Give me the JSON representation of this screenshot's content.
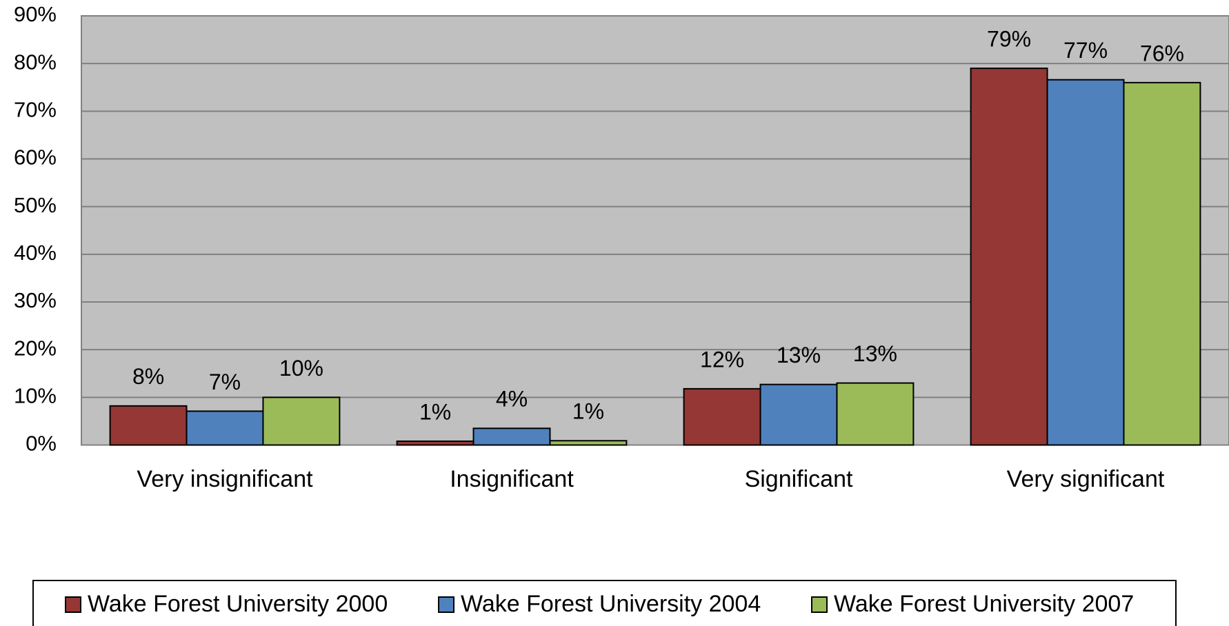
{
  "chart_data": {
    "type": "bar",
    "categories": [
      "Very insignificant",
      "Insignificant",
      "Significant",
      "Very significant"
    ],
    "series": [
      {
        "name": "Wake Forest University 2000",
        "color": "#953735",
        "values": [
          8.2,
          0.8,
          11.8,
          79.0
        ],
        "value_labels": [
          "8%",
          "1%",
          "12%",
          "79%"
        ]
      },
      {
        "name": "Wake Forest University 2004",
        "color": "#4f81bd",
        "values": [
          7.1,
          3.5,
          12.7,
          76.6
        ],
        "value_labels": [
          "7%",
          "4%",
          "13%",
          "77%"
        ]
      },
      {
        "name": "Wake Forest University 2007",
        "color": "#9bbb59",
        "values": [
          10.0,
          0.9,
          13.0,
          76.0
        ],
        "value_labels": [
          "10%",
          "1%",
          "13%",
          "76%"
        ]
      }
    ],
    "ylim": [
      0,
      90
    ],
    "yticks": [
      {
        "value": 0,
        "label": "0%"
      },
      {
        "value": 10,
        "label": "10%"
      },
      {
        "value": 20,
        "label": "20%"
      },
      {
        "value": 30,
        "label": "30%"
      },
      {
        "value": 40,
        "label": "40%"
      },
      {
        "value": 50,
        "label": "50%"
      },
      {
        "value": 60,
        "label": "60%"
      },
      {
        "value": 70,
        "label": "70%"
      },
      {
        "value": 80,
        "label": "80%"
      },
      {
        "value": 90,
        "label": "90%"
      }
    ],
    "grid": true,
    "legend": "bottom"
  }
}
